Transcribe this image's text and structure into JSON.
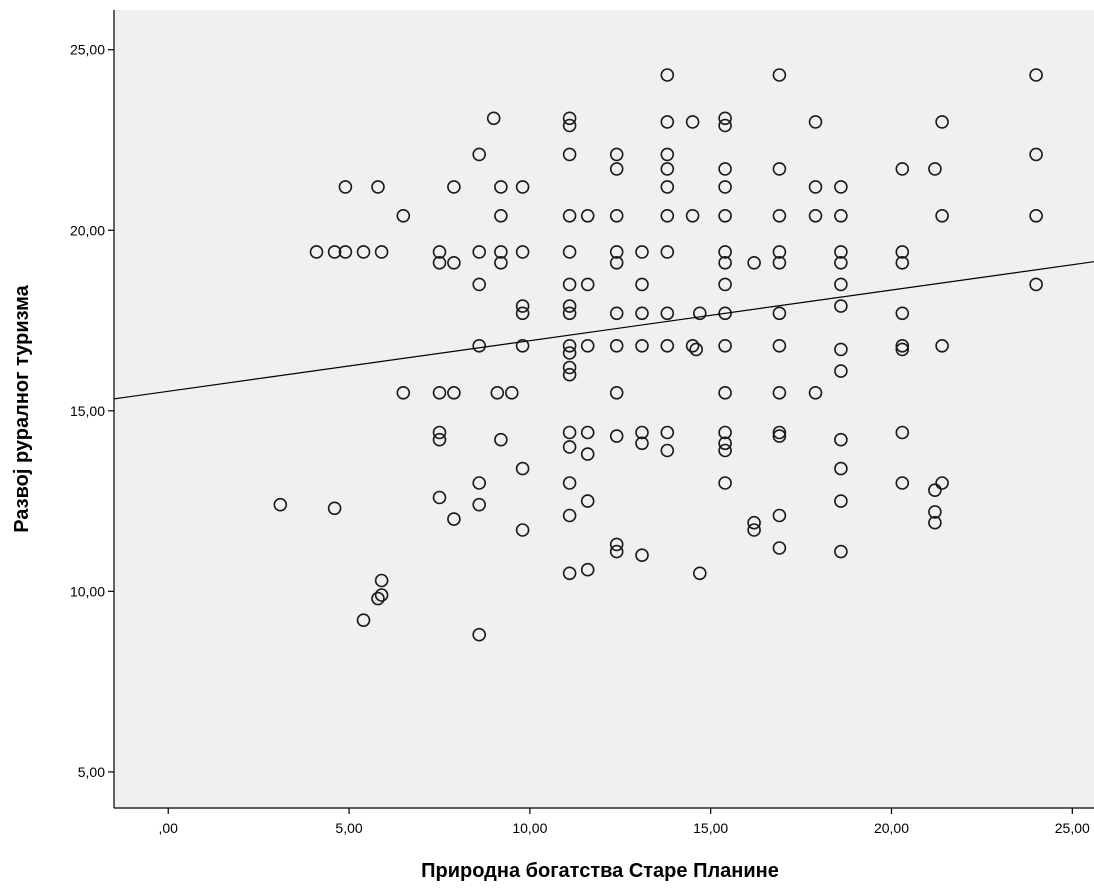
{
  "chart_data": {
    "type": "scatter",
    "xlabel": "Природна богатства Старе Планине",
    "ylabel": "Развој руралног туризма",
    "xlim": [
      -1.5,
      25.6
    ],
    "ylim": [
      4.0,
      26.1
    ],
    "x_ticks": [
      {
        "value": 0,
        "label": ",00"
      },
      {
        "value": 5,
        "label": "5,00"
      },
      {
        "value": 10,
        "label": "10,00"
      },
      {
        "value": 15,
        "label": "15,00"
      },
      {
        "value": 20,
        "label": "20,00"
      },
      {
        "value": 25,
        "label": "25,00"
      }
    ],
    "y_ticks": [
      {
        "value": 5,
        "label": "5,00"
      },
      {
        "value": 10,
        "label": "10,00"
      },
      {
        "value": 15,
        "label": "15,00"
      },
      {
        "value": 20,
        "label": "20,00"
      },
      {
        "value": 25,
        "label": "25,00"
      }
    ],
    "grid": false,
    "plot_background": "#f0f0f0",
    "marker_color": "#1a1a1a",
    "fit_line": {
      "type": "linear",
      "x": [
        -1.5,
        25.6
      ],
      "y": [
        15.33,
        19.13
      ]
    },
    "points": [
      [
        3.1,
        12.4
      ],
      [
        4.1,
        19.4
      ],
      [
        4.6,
        19.4
      ],
      [
        4.6,
        12.3
      ],
      [
        4.9,
        21.2
      ],
      [
        4.9,
        19.4
      ],
      [
        5.4,
        19.4
      ],
      [
        5.4,
        9.2
      ],
      [
        5.8,
        21.2
      ],
      [
        5.9,
        19.4
      ],
      [
        5.9,
        10.3
      ],
      [
        5.8,
        9.8
      ],
      [
        5.9,
        9.9
      ],
      [
        6.5,
        20.4
      ],
      [
        6.5,
        15.5
      ],
      [
        7.5,
        19.4
      ],
      [
        7.5,
        19.1
      ],
      [
        7.5,
        15.5
      ],
      [
        7.5,
        14.4
      ],
      [
        7.5,
        14.2
      ],
      [
        7.5,
        12.6
      ],
      [
        7.9,
        21.2
      ],
      [
        7.9,
        19.1
      ],
      [
        7.9,
        15.5
      ],
      [
        7.9,
        12.0
      ],
      [
        8.6,
        22.1
      ],
      [
        8.6,
        19.4
      ],
      [
        8.6,
        18.5
      ],
      [
        8.6,
        16.8
      ],
      [
        8.6,
        13.0
      ],
      [
        8.6,
        12.4
      ],
      [
        8.6,
        8.8
      ],
      [
        9.0,
        23.1
      ],
      [
        9.1,
        15.5
      ],
      [
        9.2,
        21.2
      ],
      [
        9.2,
        20.4
      ],
      [
        9.2,
        19.4
      ],
      [
        9.2,
        19.1
      ],
      [
        9.2,
        14.2
      ],
      [
        9.5,
        15.5
      ],
      [
        9.8,
        21.2
      ],
      [
        9.8,
        19.4
      ],
      [
        9.8,
        17.9
      ],
      [
        9.8,
        17.7
      ],
      [
        9.8,
        16.8
      ],
      [
        9.8,
        13.4
      ],
      [
        9.8,
        11.7
      ],
      [
        11.1,
        23.1
      ],
      [
        11.1,
        22.9
      ],
      [
        11.1,
        22.1
      ],
      [
        11.1,
        20.4
      ],
      [
        11.1,
        19.4
      ],
      [
        11.1,
        18.5
      ],
      [
        11.1,
        17.9
      ],
      [
        11.1,
        17.7
      ],
      [
        11.1,
        16.8
      ],
      [
        11.1,
        16.6
      ],
      [
        11.1,
        16.2
      ],
      [
        11.1,
        16.0
      ],
      [
        11.1,
        14.4
      ],
      [
        11.1,
        14.0
      ],
      [
        11.1,
        13.0
      ],
      [
        11.1,
        12.1
      ],
      [
        11.1,
        10.5
      ],
      [
        11.6,
        20.4
      ],
      [
        11.6,
        18.5
      ],
      [
        11.6,
        16.8
      ],
      [
        11.6,
        14.4
      ],
      [
        11.6,
        13.8
      ],
      [
        11.6,
        12.5
      ],
      [
        11.6,
        10.6
      ],
      [
        12.4,
        22.1
      ],
      [
        12.4,
        21.7
      ],
      [
        12.4,
        20.4
      ],
      [
        12.4,
        19.4
      ],
      [
        12.4,
        19.1
      ],
      [
        12.4,
        17.7
      ],
      [
        12.4,
        16.8
      ],
      [
        12.4,
        15.5
      ],
      [
        12.4,
        14.3
      ],
      [
        12.4,
        11.3
      ],
      [
        12.4,
        11.1
      ],
      [
        13.1,
        19.4
      ],
      [
        13.1,
        18.5
      ],
      [
        13.1,
        17.7
      ],
      [
        13.1,
        16.8
      ],
      [
        13.1,
        14.4
      ],
      [
        13.1,
        14.1
      ],
      [
        13.1,
        11.0
      ],
      [
        13.8,
        24.3
      ],
      [
        13.8,
        23.0
      ],
      [
        13.8,
        22.1
      ],
      [
        13.8,
        21.7
      ],
      [
        13.8,
        21.2
      ],
      [
        13.8,
        20.4
      ],
      [
        13.8,
        19.4
      ],
      [
        13.8,
        17.7
      ],
      [
        13.8,
        16.8
      ],
      [
        13.8,
        14.4
      ],
      [
        13.8,
        13.9
      ],
      [
        14.5,
        23.0
      ],
      [
        14.5,
        20.4
      ],
      [
        14.5,
        16.8
      ],
      [
        14.6,
        16.7
      ],
      [
        14.7,
        17.7
      ],
      [
        14.7,
        10.5
      ],
      [
        15.4,
        23.1
      ],
      [
        15.4,
        22.9
      ],
      [
        15.4,
        21.7
      ],
      [
        15.4,
        21.2
      ],
      [
        15.4,
        20.4
      ],
      [
        15.4,
        19.4
      ],
      [
        15.4,
        19.1
      ],
      [
        15.4,
        18.5
      ],
      [
        15.4,
        17.7
      ],
      [
        15.4,
        16.8
      ],
      [
        15.4,
        15.5
      ],
      [
        15.4,
        14.4
      ],
      [
        15.4,
        14.1
      ],
      [
        15.4,
        13.9
      ],
      [
        15.4,
        13.0
      ],
      [
        16.2,
        19.1
      ],
      [
        16.2,
        11.9
      ],
      [
        16.2,
        11.7
      ],
      [
        16.9,
        24.3
      ],
      [
        16.9,
        21.7
      ],
      [
        16.9,
        20.4
      ],
      [
        16.9,
        19.4
      ],
      [
        16.9,
        19.1
      ],
      [
        16.9,
        17.7
      ],
      [
        16.9,
        16.8
      ],
      [
        16.9,
        15.5
      ],
      [
        16.9,
        14.4
      ],
      [
        16.9,
        14.3
      ],
      [
        16.9,
        12.1
      ],
      [
        16.9,
        11.2
      ],
      [
        17.9,
        23.0
      ],
      [
        17.9,
        21.2
      ],
      [
        17.9,
        20.4
      ],
      [
        17.9,
        15.5
      ],
      [
        18.6,
        21.2
      ],
      [
        18.6,
        20.4
      ],
      [
        18.6,
        19.4
      ],
      [
        18.6,
        19.1
      ],
      [
        18.6,
        18.5
      ],
      [
        18.6,
        17.9
      ],
      [
        18.6,
        16.7
      ],
      [
        18.6,
        16.1
      ],
      [
        18.6,
        14.2
      ],
      [
        18.6,
        13.4
      ],
      [
        18.6,
        12.5
      ],
      [
        18.6,
        11.1
      ],
      [
        20.3,
        21.7
      ],
      [
        20.3,
        19.4
      ],
      [
        20.3,
        19.1
      ],
      [
        20.3,
        17.7
      ],
      [
        20.3,
        16.8
      ],
      [
        20.3,
        16.7
      ],
      [
        20.3,
        14.4
      ],
      [
        20.3,
        13.0
      ],
      [
        21.2,
        21.7
      ],
      [
        21.2,
        12.8
      ],
      [
        21.2,
        12.2
      ],
      [
        21.2,
        11.9
      ],
      [
        21.4,
        23.0
      ],
      [
        21.4,
        20.4
      ],
      [
        21.4,
        16.8
      ],
      [
        21.4,
        13.0
      ],
      [
        24.0,
        24.3
      ],
      [
        24.0,
        22.1
      ],
      [
        24.0,
        20.4
      ],
      [
        24.0,
        18.5
      ]
    ]
  }
}
